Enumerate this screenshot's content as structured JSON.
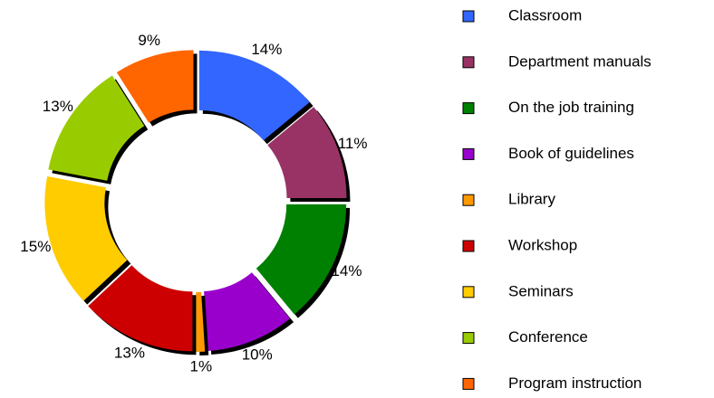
{
  "chart_data": {
    "type": "donut",
    "categories": [
      "Classroom",
      "Department manuals",
      "On the job training",
      "Book of guidelines",
      "Library",
      "Workshop",
      "Seminars",
      "Conference",
      "Program instruction"
    ],
    "values": [
      14,
      11,
      14,
      10,
      1,
      13,
      15,
      13,
      9
    ],
    "value_labels": [
      "14%",
      "11%",
      "14%",
      "10%",
      "1%",
      "13%",
      "15%",
      "13%",
      "9%"
    ],
    "colors": [
      "#3366ff",
      "#993366",
      "#008000",
      "#9900cc",
      "#ff9900",
      "#cc0000",
      "#ffcc00",
      "#99cc00",
      "#ff6600"
    ],
    "legend": "right"
  }
}
